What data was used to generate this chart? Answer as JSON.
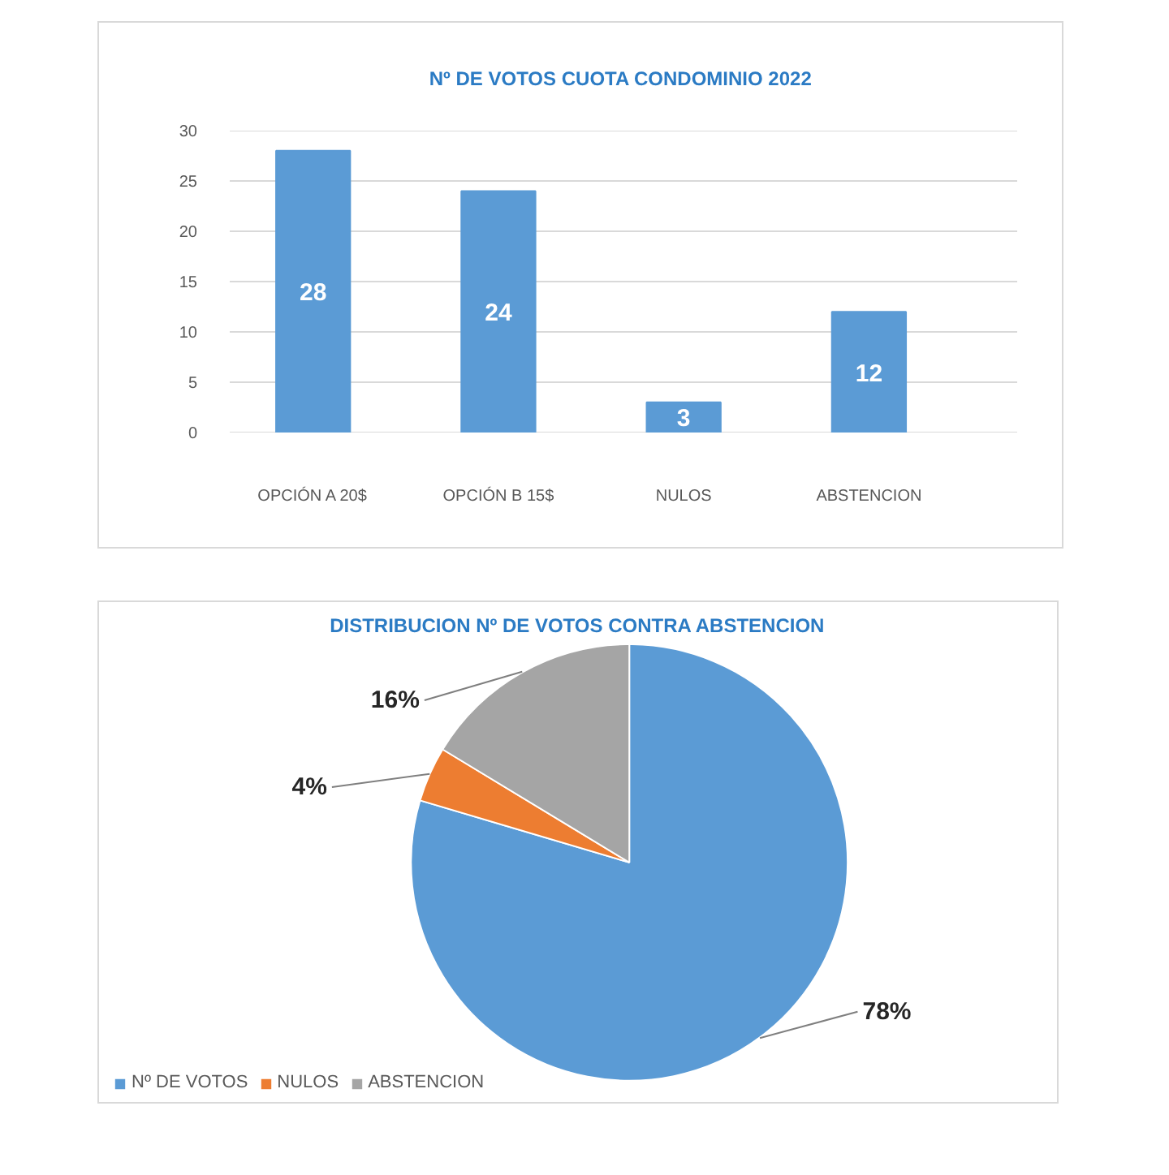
{
  "chart_data": [
    {
      "type": "bar",
      "title": "Nº DE VOTOS CUOTA CONDOMINIO  2022",
      "categories": [
        "OPCIÓN A 20$",
        "OPCIÓN B 15$",
        "NULOS",
        "ABSTENCION"
      ],
      "values": [
        28,
        24,
        3,
        12
      ],
      "color": "#5b9bd5",
      "ylim": [
        0,
        30
      ],
      "yticks": [
        0,
        5,
        10,
        15,
        20,
        25,
        30
      ],
      "grid": "y",
      "data_labels": true
    },
    {
      "type": "pie",
      "title": "DISTRIBUCION  Nº DE VOTOS CONTRA ABSTENCION",
      "categories": [
        "Nº DE VOTOS",
        "NULOS",
        "ABSTENCION"
      ],
      "values": [
        78,
        4,
        16
      ],
      "colors": [
        "#5b9bd5",
        "#ed7d31",
        "#a5a5a5"
      ],
      "value_labels": [
        "78%",
        "4%",
        "16%"
      ],
      "legend": "bottom left"
    }
  ]
}
